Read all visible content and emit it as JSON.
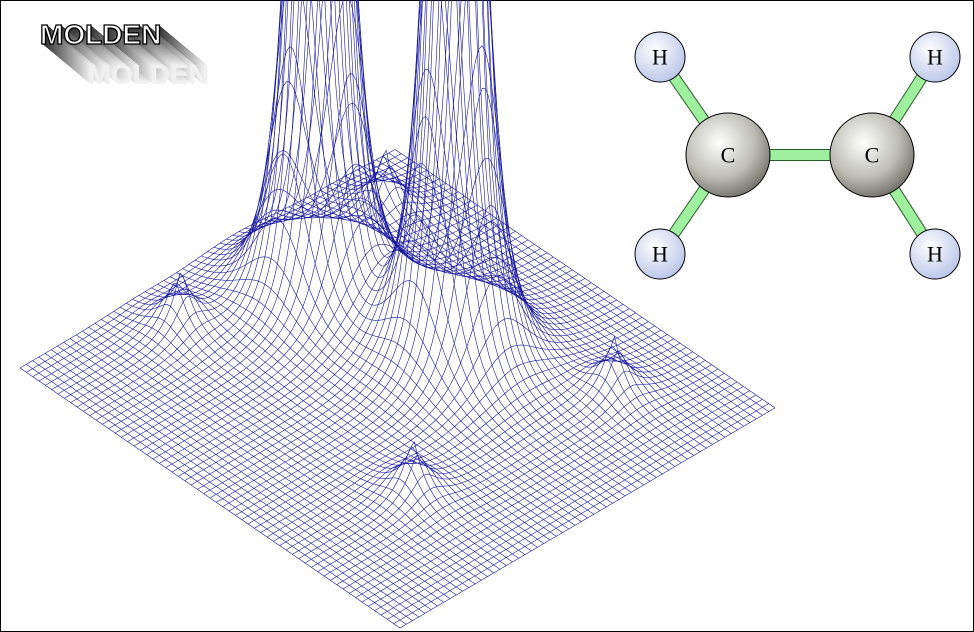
{
  "logo": "MOLDEN",
  "atoms": [
    {
      "label": "H"
    },
    {
      "label": "H"
    },
    {
      "label": "C"
    },
    {
      "label": "C"
    },
    {
      "label": "H"
    },
    {
      "label": "H"
    }
  ]
}
